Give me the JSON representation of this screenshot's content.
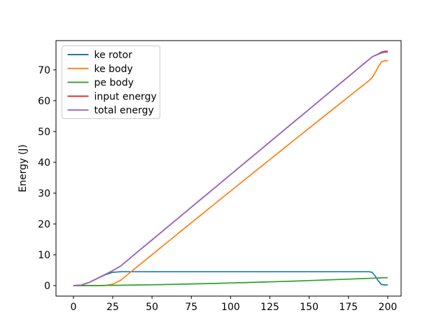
{
  "figure": {
    "background": "#ffffff"
  },
  "chart_data": {
    "type": "line",
    "title": "",
    "xlabel": "",
    "ylabel": "Energy (J)",
    "xlim": [
      -11.1,
      208.5
    ],
    "ylim": [
      -3.4,
      79.5
    ],
    "xticks": [
      0,
      25,
      50,
      75,
      100,
      125,
      150,
      175,
      200
    ],
    "yticks": [
      0,
      10,
      20,
      30,
      40,
      50,
      60,
      70
    ],
    "grid": false,
    "legend_position": "upper left",
    "legend_border_color": "#cccccc",
    "axis_color": "#000000",
    "x": [
      0,
      5,
      10,
      15,
      20,
      25,
      30,
      40,
      50,
      60,
      70,
      80,
      90,
      100,
      110,
      120,
      130,
      140,
      150,
      160,
      170,
      175,
      180,
      185,
      188,
      190,
      192,
      194,
      196,
      198,
      200
    ],
    "series": [
      {
        "name": "ke rotor",
        "color": "#1f77b4",
        "values": [
          0,
          0.17,
          1.02,
          2.25,
          3.48,
          4.33,
          4.5,
          4.5,
          4.5,
          4.5,
          4.5,
          4.5,
          4.5,
          4.5,
          4.5,
          4.5,
          4.5,
          4.5,
          4.5,
          4.5,
          4.5,
          4.5,
          4.5,
          4.5,
          4.5,
          4.32,
          3.14,
          1.56,
          0.38,
          0.2,
          0.2
        ]
      },
      {
        "name": "ke body",
        "color": "#ff7f0e",
        "values": [
          0,
          0,
          0,
          0,
          0,
          0.45,
          1.72,
          5.89,
          10.05,
          14.19,
          18.33,
          22.45,
          26.57,
          30.67,
          34.77,
          38.86,
          42.95,
          47.02,
          51.09,
          55.15,
          59.21,
          61.23,
          63.25,
          65.27,
          66.49,
          67.47,
          69.09,
          71.0,
          72.59,
          72.95,
          72.91
        ]
      },
      {
        "name": "pe body",
        "color": "#2ca02c",
        "values": [
          0,
          0.01,
          0.02,
          0.04,
          0.07,
          0.09,
          0.13,
          0.2,
          0.28,
          0.38,
          0.48,
          0.6,
          0.72,
          0.86,
          1.0,
          1.15,
          1.3,
          1.47,
          1.64,
          1.82,
          2.0,
          2.1,
          2.2,
          2.3,
          2.35,
          2.4,
          2.44,
          2.48,
          2.52,
          2.56,
          2.6
        ]
      },
      {
        "name": "input energy",
        "color": "#d62728",
        "values": [
          0,
          0.18,
          1.04,
          2.29,
          3.55,
          4.87,
          6.35,
          10.59,
          14.83,
          19.07,
          23.31,
          27.55,
          31.79,
          36.03,
          40.27,
          44.51,
          48.75,
          52.99,
          57.23,
          61.47,
          65.71,
          67.83,
          69.95,
          72.07,
          73.34,
          74.19,
          74.72,
          75.15,
          75.75,
          76.0,
          76.05
        ]
      },
      {
        "name": "total energy",
        "color": "#9467bd",
        "values": [
          0,
          0.18,
          1.04,
          2.29,
          3.55,
          4.87,
          6.35,
          10.59,
          14.83,
          19.07,
          23.31,
          27.55,
          31.79,
          36.03,
          40.27,
          44.51,
          48.75,
          52.99,
          57.23,
          61.47,
          65.71,
          67.83,
          69.95,
          72.07,
          73.34,
          74.19,
          74.67,
          75.04,
          75.49,
          75.71,
          75.71
        ]
      }
    ]
  }
}
